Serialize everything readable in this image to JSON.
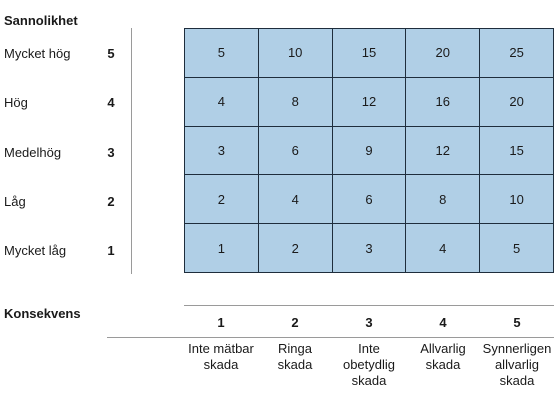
{
  "y_heading": "Sannolikhet",
  "x_heading": "Konsekvens",
  "rows": [
    {
      "label": "Mycket hög",
      "num": "5",
      "cells": [
        "5",
        "10",
        "15",
        "20",
        "25"
      ]
    },
    {
      "label": "Hög",
      "num": "4",
      "cells": [
        "4",
        "8",
        "12",
        "16",
        "20"
      ]
    },
    {
      "label": "Medelhög",
      "num": "3",
      "cells": [
        "3",
        "6",
        "9",
        "12",
        "15"
      ]
    },
    {
      "label": "Låg",
      "num": "2",
      "cells": [
        "2",
        "4",
        "6",
        "8",
        "10"
      ]
    },
    {
      "label": "Mycket låg",
      "num": "1",
      "cells": [
        "1",
        "2",
        "3",
        "4",
        "5"
      ]
    }
  ],
  "columns": [
    {
      "num": "1",
      "label": "Inte mätbar\nskada"
    },
    {
      "num": "2",
      "label": "Ringa\nskada"
    },
    {
      "num": "3",
      "label": "Inte\nobetydlig\nskada"
    },
    {
      "num": "4",
      "label": "Allvarlig\nskada"
    },
    {
      "num": "5",
      "label": "Synnerligen\nallvarlig\nskada"
    }
  ],
  "colors": {
    "cell_fill": "#b0cfe6",
    "grid_line": "#1e2d3c",
    "axis_line": "#9a9a9a"
  }
}
